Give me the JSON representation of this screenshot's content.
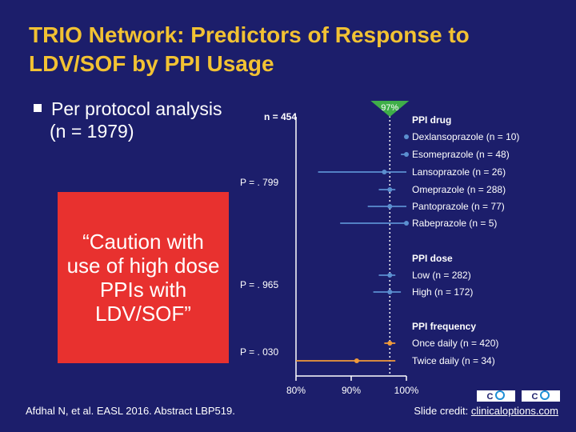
{
  "slide": {
    "title_line1": "TRIO Network: Predictors of Response to",
    "title_line2": "LDV/SOF by PPI Usage",
    "bullet": "Per protocol analysis",
    "bullet_sub": "(n = 1979)",
    "quote": "“Caution with use of high dose PPIs with LDV/SOF”",
    "citation": "Afdhal N, et al. EASL 2016. Abstract LBP519.",
    "credit_prefix": "Slide credit: ",
    "credit_link": "clinicaloptions.com"
  },
  "colors": {
    "background": "#1c1e6b",
    "title": "#f2c233",
    "quote_box": "#e8312f",
    "blue_series": "#5b8fd0",
    "orange_series": "#f09a3a",
    "reference_marker": "#3fae49"
  },
  "chart_data": {
    "type": "forest",
    "n_label": "n = 454",
    "reference": {
      "value": 97,
      "label": "97%"
    },
    "x_ticks": [
      {
        "value": 80,
        "label": "80%"
      },
      {
        "value": 90,
        "label": "90%"
      },
      {
        "value": 100,
        "label": "100%"
      }
    ],
    "xlim": [
      80,
      100
    ],
    "groups": [
      {
        "header": "PPI drug",
        "p_label": "P = . 799",
        "color": "#5b8fd0",
        "rows": [
          {
            "label": "Dexlansoprazole (n = 10)",
            "estimate": 100,
            "ci": [
              100,
              100
            ]
          },
          {
            "label": "Esomeprazole (n = 48)",
            "estimate": 100,
            "ci": [
              99,
              100
            ]
          },
          {
            "label": "Lansoprazole (n = 26)",
            "estimate": 96,
            "ci": [
              84,
              100
            ]
          },
          {
            "label": "Omeprazole (n = 288)",
            "estimate": 97,
            "ci": [
              95,
              98
            ]
          },
          {
            "label": "Pantoprazole (n = 77)",
            "estimate": 97,
            "ci": [
              93,
              100
            ]
          },
          {
            "label": "Rabeprazole (n = 5)",
            "estimate": 100,
            "ci": [
              88,
              100
            ]
          }
        ]
      },
      {
        "header": "PPI dose",
        "p_label": "P = . 965",
        "color": "#5b8fd0",
        "rows": [
          {
            "label": "Low (n = 282)",
            "estimate": 97,
            "ci": [
              95,
              98
            ]
          },
          {
            "label": "High (n = 172)",
            "estimate": 97,
            "ci": [
              94,
              99
            ]
          }
        ]
      },
      {
        "header": "PPI frequency",
        "p_label": "P = . 030",
        "color": "#f09a3a",
        "rows": [
          {
            "label": "Once daily (n = 420)",
            "estimate": 97,
            "ci": [
              96,
              98
            ]
          },
          {
            "label": "Twice daily (n = 34)",
            "estimate": 91,
            "ci": [
              80,
              98
            ]
          }
        ]
      }
    ]
  }
}
